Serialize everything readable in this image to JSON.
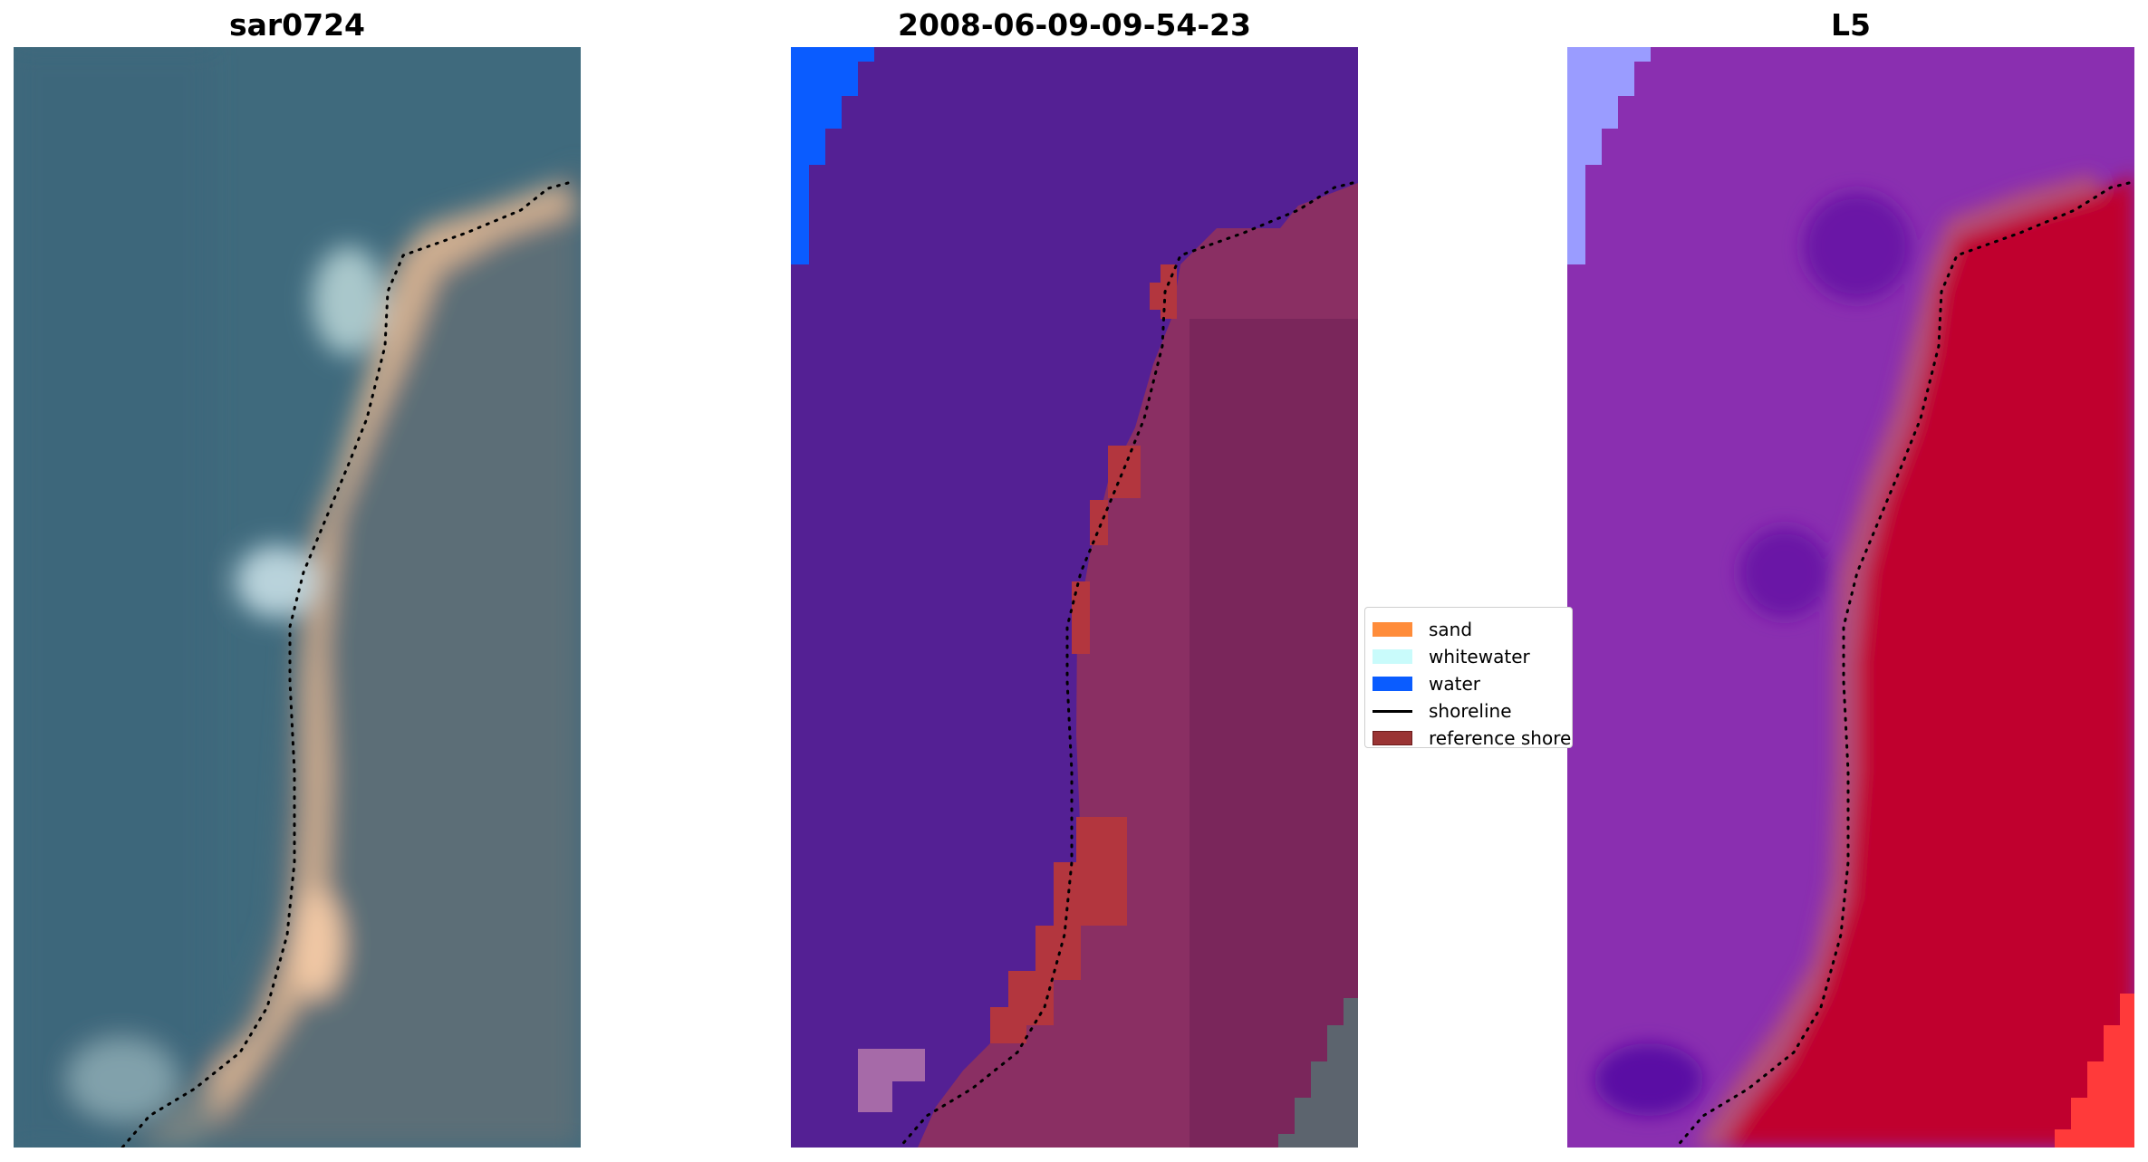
{
  "panels": [
    {
      "id": "rgb",
      "title": "sar0724"
    },
    {
      "id": "classified",
      "title": "2008-06-09-09-54-23"
    },
    {
      "id": "index",
      "title": "L5"
    }
  ],
  "legend": {
    "items": [
      {
        "label": "sand",
        "kind": "patch",
        "color": "#ff8c3a"
      },
      {
        "label": "whitewater",
        "kind": "patch",
        "color": "#c9fbfb"
      },
      {
        "label": "water",
        "kind": "patch",
        "color": "#0a5cff"
      },
      {
        "label": "shoreline",
        "kind": "line",
        "color": "#000000"
      },
      {
        "label": "reference shoreline",
        "kind": "patch",
        "color": "#9a3434"
      }
    ]
  },
  "colors": {
    "rgb_water": "#3f6a7d",
    "rgb_land": "#5a6c74",
    "rgb_sand": "#d6b596",
    "rgb_white": "#d9f4f0",
    "class_background": "#542094",
    "class_water": "#0a5cff",
    "class_land": "#8a2f63",
    "class_reference": "#b3363e",
    "class_overlap": "#a66aa8",
    "index_purple": "#8a2fb0",
    "index_red": "#c0012e",
    "index_bright_red": "#ff3a3a",
    "index_light_blue": "#9a9cff",
    "shoreline": "#000000"
  }
}
